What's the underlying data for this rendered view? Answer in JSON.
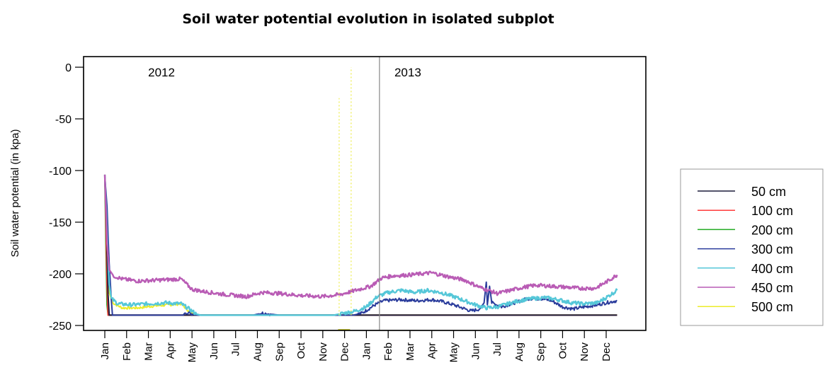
{
  "chart_data": {
    "type": "line",
    "title": "Soil water potential evolution in isolated subplot",
    "xlabel": "",
    "ylabel": "Soil water potential (in kpa)",
    "ylim": [
      -255,
      0
    ],
    "yticks": [
      0,
      -50,
      -100,
      -150,
      -200,
      -250
    ],
    "month_labels": [
      "Jan",
      "Feb",
      "Mar",
      "Apr",
      "May",
      "Jun",
      "Jul",
      "Aug",
      "Sep",
      "Oct",
      "Nov",
      "Dec",
      "Jan",
      "Feb",
      "Mar",
      "Apr",
      "May",
      "Jun",
      "Jul",
      "Aug",
      "Sep",
      "Oct",
      "Nov",
      "Dec"
    ],
    "year_annotations": [
      {
        "text": "2012",
        "month_index": 2.6
      },
      {
        "text": "2013",
        "month_index": 13.9
      }
    ],
    "divider_month_index": 12.6,
    "legend": {
      "placement": "right"
    },
    "series": [
      {
        "name": "50 cm",
        "color": "#1b1b3a",
        "points": [
          [
            0,
            -110
          ],
          [
            0.05,
            -130
          ],
          [
            0.1,
            -175
          ],
          [
            0.15,
            -220
          ],
          [
            0.2,
            -240
          ],
          [
            3.5,
            -240
          ],
          [
            3.7,
            -240
          ],
          [
            23.5,
            -240
          ]
        ]
      },
      {
        "name": "100 cm",
        "color": "#ff3b3b",
        "points": [
          [
            0,
            -105
          ],
          [
            0.05,
            -150
          ],
          [
            0.1,
            -210
          ],
          [
            0.15,
            -240
          ],
          [
            23.5,
            -240
          ]
        ]
      },
      {
        "name": "200 cm",
        "color": "#22aa22",
        "points": [
          [
            0,
            -108
          ],
          [
            0.05,
            -170
          ],
          [
            0.1,
            -230
          ],
          [
            0.15,
            -240
          ],
          [
            23.5,
            -240
          ]
        ]
      },
      {
        "name": "300 cm",
        "color": "#2a3c9c",
        "points": [
          [
            0,
            -105
          ],
          [
            0.1,
            -135
          ],
          [
            0.2,
            -190
          ],
          [
            0.3,
            -225
          ],
          [
            0.35,
            -240
          ],
          [
            3.6,
            -240
          ],
          [
            3.7,
            -237
          ],
          [
            4.2,
            -240
          ],
          [
            6.8,
            -240
          ],
          [
            7.2,
            -238
          ],
          [
            8.0,
            -240
          ],
          [
            11.4,
            -240
          ],
          [
            11.8,
            -238
          ],
          [
            12.4,
            -230
          ],
          [
            12.8,
            -226
          ],
          [
            13.6,
            -225
          ],
          [
            14.3,
            -226
          ],
          [
            15.0,
            -225
          ],
          [
            15.5,
            -227
          ],
          [
            16.0,
            -230
          ],
          [
            16.4,
            -233
          ],
          [
            16.8,
            -236
          ],
          [
            17.2,
            -234
          ],
          [
            17.4,
            -228
          ],
          [
            17.5,
            -208
          ],
          [
            17.55,
            -230
          ],
          [
            17.65,
            -212
          ],
          [
            17.75,
            -228
          ],
          [
            18.2,
            -232
          ],
          [
            18.8,
            -228
          ],
          [
            19.4,
            -224
          ],
          [
            20.0,
            -224
          ],
          [
            20.5,
            -226
          ],
          [
            21.0,
            -232
          ],
          [
            21.5,
            -234
          ],
          [
            22.0,
            -232
          ],
          [
            22.6,
            -230
          ],
          [
            23.0,
            -228
          ],
          [
            23.5,
            -226
          ]
        ]
      },
      {
        "name": "400 cm",
        "color": "#55c7d8",
        "points": [
          [
            0,
            -104
          ],
          [
            0.1,
            -160
          ],
          [
            0.2,
            -210
          ],
          [
            0.3,
            -224
          ],
          [
            0.6,
            -229
          ],
          [
            1.2,
            -230
          ],
          [
            2.0,
            -229
          ],
          [
            2.8,
            -228
          ],
          [
            3.5,
            -229
          ],
          [
            3.8,
            -233
          ],
          [
            4.2,
            -239
          ],
          [
            4.4,
            -240
          ],
          [
            10.5,
            -240
          ],
          [
            11.0,
            -238
          ],
          [
            11.5,
            -236
          ],
          [
            12.0,
            -232
          ],
          [
            12.5,
            -222
          ],
          [
            13.0,
            -218
          ],
          [
            13.6,
            -216
          ],
          [
            14.2,
            -218
          ],
          [
            14.8,
            -216
          ],
          [
            15.4,
            -218
          ],
          [
            16.0,
            -222
          ],
          [
            16.5,
            -226
          ],
          [
            17.0,
            -230
          ],
          [
            17.5,
            -233
          ],
          [
            18.0,
            -232
          ],
          [
            18.5,
            -229
          ],
          [
            19.0,
            -226
          ],
          [
            19.6,
            -224
          ],
          [
            20.2,
            -223
          ],
          [
            20.8,
            -225
          ],
          [
            21.4,
            -228
          ],
          [
            22.0,
            -229
          ],
          [
            22.6,
            -228
          ],
          [
            23.0,
            -223
          ],
          [
            23.5,
            -216
          ]
        ]
      },
      {
        "name": "450 cm",
        "color": "#b95cb5",
        "points": [
          [
            0,
            -104
          ],
          [
            0.1,
            -170
          ],
          [
            0.2,
            -196
          ],
          [
            0.4,
            -202
          ],
          [
            0.8,
            -205
          ],
          [
            1.5,
            -207
          ],
          [
            2.5,
            -206
          ],
          [
            3.5,
            -205
          ],
          [
            3.7,
            -209
          ],
          [
            4.0,
            -215
          ],
          [
            4.5,
            -217
          ],
          [
            5.5,
            -220
          ],
          [
            6.5,
            -222
          ],
          [
            7.2,
            -218
          ],
          [
            8.0,
            -219
          ],
          [
            9.0,
            -221
          ],
          [
            10.0,
            -222
          ],
          [
            10.8,
            -220
          ],
          [
            11.5,
            -216
          ],
          [
            12.2,
            -212
          ],
          [
            12.7,
            -204
          ],
          [
            13.2,
            -202
          ],
          [
            14.0,
            -201
          ],
          [
            15.0,
            -199
          ],
          [
            15.8,
            -203
          ],
          [
            16.5,
            -206
          ],
          [
            17.2,
            -213
          ],
          [
            17.6,
            -216
          ],
          [
            18.0,
            -219
          ],
          [
            18.6,
            -216
          ],
          [
            19.2,
            -213
          ],
          [
            19.8,
            -211
          ],
          [
            20.5,
            -212
          ],
          [
            21.2,
            -213
          ],
          [
            21.8,
            -214
          ],
          [
            22.5,
            -214
          ],
          [
            23.0,
            -208
          ],
          [
            23.5,
            -201
          ]
        ]
      },
      {
        "name": "500 cm",
        "color": "#ecec2a",
        "points": [
          [
            0,
            -104
          ],
          [
            0.1,
            -175
          ],
          [
            0.2,
            -218
          ],
          [
            0.35,
            -228
          ],
          [
            0.8,
            -233
          ],
          [
            1.5,
            -233
          ],
          [
            2.3,
            -231
          ],
          [
            3.0,
            -230
          ],
          [
            3.5,
            -229
          ],
          [
            3.8,
            -235
          ],
          [
            4.1,
            -240
          ],
          [
            23.5,
            -240
          ]
        ]
      }
    ]
  },
  "legend_colors": {
    "box_border": "#999999",
    "frame": "#000000",
    "divider": "#888888",
    "spike": "#eeee55",
    "dip": "#bbbb22"
  }
}
